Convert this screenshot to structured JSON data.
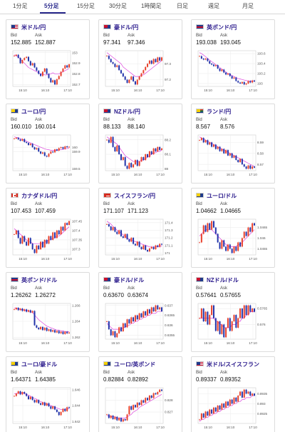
{
  "tabs": [
    "1分足",
    "5分足",
    "15分足",
    "30分足",
    "1時間足",
    "日足",
    "週足",
    "月足"
  ],
  "active_tab": 1,
  "bid_label": "Bid",
  "ask_label": "Ask",
  "colors": {
    "up": "#e8412c",
    "down": "#2233aa",
    "ma": "#dd44dd",
    "accent": "#2a2a8c"
  },
  "pairs": [
    {
      "name": "米ドル/円",
      "bid": "152.885",
      "ask": "152.887",
      "flag": "us",
      "ticks": [
        "153",
        "152.9",
        "152.8",
        "152.7"
      ],
      "xticks": [
        "15:10",
        "16:10",
        "17:10"
      ],
      "prices": [
        152.97,
        152.98,
        152.95,
        152.9,
        152.93,
        152.95,
        152.96,
        152.92,
        152.88,
        152.9,
        152.86,
        152.83,
        152.8,
        152.78,
        152.82,
        152.85,
        152.8,
        152.76,
        152.72,
        152.74,
        152.7,
        152.75,
        152.78,
        152.82,
        152.85,
        152.88,
        152.86,
        152.89
      ],
      "ma": [
        152.98,
        152.97,
        152.96,
        152.94,
        152.92,
        152.9,
        152.88,
        152.86,
        152.85,
        152.84,
        152.83,
        152.82,
        152.81,
        152.8,
        152.8,
        152.79,
        152.79,
        152.8,
        152.8,
        152.81,
        152.8,
        152.8,
        152.8,
        152.81,
        152.82,
        152.83,
        152.84,
        152.85
      ]
    },
    {
      "name": "豪ドル/円",
      "bid": "97.341",
      "ask": "97.346",
      "flag": "au",
      "ticks": [
        "97.3",
        "97.2"
      ],
      "xticks": [
        "15:10",
        "16:10",
        "17:10"
      ],
      "prices": [
        97.35,
        97.33,
        97.31,
        97.3,
        97.28,
        97.29,
        97.26,
        97.24,
        97.22,
        97.2,
        97.18,
        97.2,
        97.22,
        97.19,
        97.17,
        97.2,
        97.22,
        97.24,
        97.26,
        97.28,
        97.3,
        97.32,
        97.3,
        97.33,
        97.31,
        97.34,
        97.32,
        97.34
      ],
      "ma": [
        97.37,
        97.36,
        97.35,
        97.34,
        97.33,
        97.32,
        97.31,
        97.3,
        97.28,
        97.27,
        97.26,
        97.25,
        97.24,
        97.23,
        97.22,
        97.22,
        97.22,
        97.23,
        97.23,
        97.24,
        97.25,
        97.26,
        97.27,
        97.28,
        97.29,
        97.3,
        97.31,
        97.32
      ]
    },
    {
      "name": "英ポンド/円",
      "bid": "193.038",
      "ask": "193.045",
      "flag": "gb",
      "ticks": [
        "193.6",
        "193.4",
        "193.2",
        "193"
      ],
      "xticks": [
        "15:10",
        "16:10",
        "17:10"
      ],
      "prices": [
        193.55,
        193.5,
        193.48,
        193.5,
        193.45,
        193.4,
        193.38,
        193.35,
        193.37,
        193.3,
        193.25,
        193.28,
        193.22,
        193.18,
        193.2,
        193.15,
        193.1,
        193.12,
        193.05,
        193.02,
        193.0,
        193.03,
        192.98,
        193.0,
        193.05,
        193.02,
        193.06,
        193.04
      ],
      "ma": [
        193.62,
        193.6,
        193.57,
        193.54,
        193.5,
        193.47,
        193.44,
        193.41,
        193.38,
        193.35,
        193.32,
        193.29,
        193.26,
        193.23,
        193.2,
        193.18,
        193.16,
        193.14,
        193.12,
        193.1,
        193.09,
        193.08,
        193.07,
        193.06,
        193.05,
        193.05,
        193.05,
        193.05
      ]
    },
    {
      "name": "ユーロ/円",
      "bid": "160.010",
      "ask": "160.014",
      "flag": "eu",
      "ticks": [
        "160",
        "159.9",
        "159.5"
      ],
      "xticks": [
        "15:10",
        "16:10",
        "17:10"
      ],
      "prices": [
        160.2,
        160.22,
        160.18,
        160.15,
        160.19,
        160.12,
        160.1,
        160.05,
        160.08,
        160.0,
        159.95,
        159.98,
        159.9,
        159.85,
        159.88,
        159.8,
        159.78,
        159.85,
        159.9,
        159.88,
        159.95,
        159.92,
        159.98,
        160.0,
        159.96,
        160.02,
        160.0,
        160.01
      ],
      "ma": [
        160.24,
        160.23,
        160.22,
        160.2,
        160.18,
        160.16,
        160.14,
        160.12,
        160.1,
        160.08,
        160.06,
        160.04,
        160.02,
        160.0,
        159.98,
        159.96,
        159.95,
        159.94,
        159.93,
        159.93,
        159.93,
        159.93,
        159.94,
        159.94,
        159.95,
        159.96,
        159.97,
        159.98
      ]
    },
    {
      "name": "NZドル/円",
      "bid": "88.133",
      "ask": "88.140",
      "flag": "nz",
      "ticks": [
        "88.2",
        "88.1",
        "88"
      ],
      "xticks": [
        "15:10",
        "16:10",
        "17:10"
      ],
      "prices": [
        88.2,
        88.18,
        88.22,
        88.15,
        88.12,
        88.16,
        88.1,
        88.06,
        88.08,
        88.02,
        88.0,
        88.04,
        88.01,
        88.03,
        88.06,
        88.02,
        88.05,
        88.08,
        88.06,
        88.1,
        88.08,
        88.12,
        88.1,
        88.14,
        88.12,
        88.15,
        88.13,
        88.14
      ],
      "ma": [
        88.22,
        88.21,
        88.2,
        88.19,
        88.18,
        88.17,
        88.15,
        88.13,
        88.11,
        88.09,
        88.08,
        88.07,
        88.06,
        88.05,
        88.05,
        88.05,
        88.05,
        88.06,
        88.06,
        88.07,
        88.08,
        88.09,
        88.1,
        88.11,
        88.11,
        88.12,
        88.12,
        88.13
      ]
    },
    {
      "name": "ランド/円",
      "bid": "8.567",
      "ask": "8.576",
      "flag": "za",
      "ticks": [
        "8.59",
        "8.58",
        "8.57"
      ],
      "xticks": [
        "15:10",
        "16:10",
        "17:10"
      ],
      "prices": [
        8.592,
        8.594,
        8.59,
        8.592,
        8.588,
        8.59,
        8.586,
        8.588,
        8.584,
        8.586,
        8.582,
        8.584,
        8.58,
        8.583,
        8.578,
        8.58,
        8.576,
        8.578,
        8.574,
        8.572,
        8.575,
        8.57,
        8.568,
        8.566,
        8.569,
        8.566,
        8.568,
        8.567
      ],
      "ma": [
        8.595,
        8.594,
        8.593,
        8.592,
        8.591,
        8.59,
        8.589,
        8.588,
        8.587,
        8.586,
        8.585,
        8.584,
        8.583,
        8.582,
        8.581,
        8.58,
        8.579,
        8.578,
        8.577,
        8.576,
        8.575,
        8.574,
        8.573,
        8.572,
        8.571,
        8.57,
        8.569,
        8.568
      ]
    },
    {
      "name": "カナダドル/円",
      "bid": "107.453",
      "ask": "107.459",
      "flag": "ca",
      "ticks": [
        "107.45",
        "107.4",
        "107.35",
        "107.3"
      ],
      "xticks": [
        "15:10",
        "16:10",
        "17:10"
      ],
      "prices": [
        107.38,
        107.4,
        107.36,
        107.33,
        107.37,
        107.34,
        107.32,
        107.36,
        107.33,
        107.3,
        107.28,
        107.32,
        107.3,
        107.34,
        107.31,
        107.35,
        107.33,
        107.37,
        107.35,
        107.39,
        107.36,
        107.4,
        107.38,
        107.42,
        107.4,
        107.44,
        107.43,
        107.45
      ],
      "ma": [
        107.41,
        107.4,
        107.39,
        107.38,
        107.37,
        107.36,
        107.35,
        107.34,
        107.34,
        107.33,
        107.33,
        107.33,
        107.33,
        107.33,
        107.33,
        107.34,
        107.34,
        107.35,
        107.35,
        107.36,
        107.36,
        107.37,
        107.37,
        107.38,
        107.39,
        107.4,
        107.41,
        107.42
      ]
    },
    {
      "name": "スイスフラン/円",
      "bid": "171.107",
      "ask": "171.123",
      "flag": "ch",
      "ticks": [
        "171.4",
        "171.3",
        "171.2",
        "171.1",
        "171"
      ],
      "xticks": [
        "15:10",
        "16:10",
        "17:10"
      ],
      "prices": [
        171.38,
        171.35,
        171.3,
        171.34,
        171.28,
        171.25,
        171.3,
        171.22,
        171.2,
        171.25,
        171.18,
        171.15,
        171.2,
        171.12,
        171.1,
        171.15,
        171.08,
        171.05,
        171.1,
        171.04,
        171.02,
        171.06,
        171.08,
        171.05,
        171.1,
        171.08,
        171.12,
        171.11
      ],
      "ma": [
        171.42,
        171.4,
        171.38,
        171.35,
        171.33,
        171.3,
        171.28,
        171.26,
        171.24,
        171.22,
        171.2,
        171.18,
        171.17,
        171.16,
        171.15,
        171.14,
        171.13,
        171.12,
        171.11,
        171.1,
        171.09,
        171.08,
        171.08,
        171.08,
        171.08,
        171.08,
        171.09,
        171.09
      ]
    },
    {
      "name": "ユーロ/ドル",
      "bid": "1.04662",
      "ask": "1.04665",
      "flag": "eu",
      "ticks": [
        "1.0465",
        "1.046",
        "1.0455"
      ],
      "xticks": [
        "15:10",
        "16:10",
        "17:10"
      ],
      "prices": [
        1.0458,
        1.0462,
        1.0466,
        1.0463,
        1.0467,
        1.0464,
        1.0468,
        1.0465,
        1.0462,
        1.0458,
        1.0455,
        1.0459,
        1.0456,
        1.0454,
        1.0457,
        1.0455,
        1.0453,
        1.0456,
        1.0454,
        1.0458,
        1.0456,
        1.046,
        1.0463,
        1.0461,
        1.0465,
        1.0463,
        1.0467,
        1.0466
      ],
      "ma": [
        1.0461,
        1.0462,
        1.0463,
        1.0464,
        1.0464,
        1.0464,
        1.0464,
        1.0463,
        1.0462,
        1.0461,
        1.046,
        1.0459,
        1.0458,
        1.0457,
        1.0456,
        1.0456,
        1.0456,
        1.0456,
        1.0456,
        1.0457,
        1.0457,
        1.0458,
        1.0459,
        1.046,
        1.0461,
        1.0462,
        1.0463,
        1.0464
      ]
    },
    {
      "name": "英ポンド/ドル",
      "bid": "1.26262",
      "ask": "1.26272",
      "flag": "gb",
      "ticks": [
        "1.266",
        "1.264",
        "1.262"
      ],
      "xticks": [
        "15:10",
        "16:10",
        "17:10"
      ],
      "prices": [
        1.2655,
        1.2657,
        1.2654,
        1.2656,
        1.2653,
        1.2655,
        1.2652,
        1.2654,
        1.2651,
        1.2653,
        1.2635,
        1.2632,
        1.263,
        1.2633,
        1.2629,
        1.2632,
        1.2628,
        1.263,
        1.2627,
        1.2629,
        1.2626,
        1.2628,
        1.2625,
        1.2627,
        1.2624,
        1.2627,
        1.2625,
        1.2626
      ],
      "ma": [
        1.2657,
        1.2656,
        1.2656,
        1.2655,
        1.2655,
        1.2654,
        1.2654,
        1.2653,
        1.2652,
        1.2651,
        1.2648,
        1.2645,
        1.2642,
        1.264,
        1.2638,
        1.2636,
        1.2634,
        1.2633,
        1.2632,
        1.2631,
        1.263,
        1.2629,
        1.2629,
        1.2628,
        1.2628,
        1.2627,
        1.2627,
        1.2627
      ]
    },
    {
      "name": "豪ドル/ドル",
      "bid": "0.63670",
      "ask": "0.63674",
      "flag": "au",
      "ticks": [
        "0.637",
        "0.6365",
        "0.636",
        "0.6355"
      ],
      "xticks": [
        "15:10",
        "16:10",
        "17:10"
      ],
      "prices": [
        0.6362,
        0.6358,
        0.6355,
        0.6357,
        0.6354,
        0.6356,
        0.6359,
        0.6357,
        0.6361,
        0.6359,
        0.6363,
        0.6361,
        0.6364,
        0.6362,
        0.6365,
        0.6363,
        0.6366,
        0.6364,
        0.6367,
        0.6365,
        0.6368,
        0.6366,
        0.6369,
        0.6367,
        0.637,
        0.6368,
        0.6369,
        0.6367
      ],
      "ma": [
        0.6361,
        0.636,
        0.6359,
        0.6358,
        0.6358,
        0.6358,
        0.6358,
        0.6358,
        0.6359,
        0.6359,
        0.636,
        0.636,
        0.6361,
        0.6361,
        0.6362,
        0.6362,
        0.6363,
        0.6363,
        0.6364,
        0.6364,
        0.6365,
        0.6365,
        0.6366,
        0.6366,
        0.6366,
        0.6367,
        0.6367,
        0.6367
      ]
    },
    {
      "name": "NZドル/ドル",
      "bid": "0.57641",
      "ask": "0.57655",
      "flag": "nz",
      "ticks": [
        "0.5765",
        "0.576"
      ],
      "xticks": [
        "15:10",
        "16:10",
        "17:10"
      ],
      "prices": [
        0.5762,
        0.5765,
        0.5761,
        0.5764,
        0.576,
        0.5763,
        0.5766,
        0.5762,
        0.5758,
        0.5761,
        0.5757,
        0.576,
        0.5756,
        0.5759,
        0.5762,
        0.5758,
        0.5761,
        0.5763,
        0.5759,
        0.5762,
        0.5765,
        0.5762,
        0.5766,
        0.5763,
        0.5766,
        0.5764,
        0.5765,
        0.5764
      ],
      "ma": [
        0.5762,
        0.5762,
        0.5762,
        0.5762,
        0.5762,
        0.5762,
        0.5762,
        0.5762,
        0.5761,
        0.5761,
        0.576,
        0.576,
        0.5759,
        0.5759,
        0.5759,
        0.5759,
        0.576,
        0.576,
        0.576,
        0.5761,
        0.5761,
        0.5762,
        0.5762,
        0.5763,
        0.5763,
        0.5764,
        0.5764,
        0.5764
      ]
    },
    {
      "name": "ユーロ/豪ドル",
      "bid": "1.64371",
      "ask": "1.64385",
      "flag": "eu",
      "ticks": [
        "1.646",
        "1.644",
        "1.642"
      ],
      "xticks": [
        "15:10",
        "16:10",
        "17:10"
      ],
      "prices": [
        1.6452,
        1.6455,
        1.6458,
        1.6454,
        1.6457,
        1.6455,
        1.6452,
        1.6448,
        1.6451,
        1.6447,
        1.6444,
        1.6447,
        1.6443,
        1.6441,
        1.6444,
        1.644,
        1.6443,
        1.6439,
        1.6436,
        1.6439,
        1.6435,
        1.6432,
        1.6428,
        1.6432,
        1.6436,
        1.6433,
        1.6438,
        1.6437
      ],
      "ma": [
        1.6455,
        1.6455,
        1.6456,
        1.6456,
        1.6456,
        1.6455,
        1.6454,
        1.6453,
        1.6452,
        1.645,
        1.6449,
        1.6448,
        1.6446,
        1.6445,
        1.6444,
        1.6443,
        1.6442,
        1.6441,
        1.644,
        1.6439,
        1.6438,
        1.6437,
        1.6436,
        1.6435,
        1.6435,
        1.6435,
        1.6436,
        1.6436
      ]
    },
    {
      "name": "ユーロ/英ポンド",
      "bid": "0.82884",
      "ask": "0.82892",
      "flag": "eu",
      "ticks": [
        "0.828",
        "0.827"
      ],
      "xticks": [
        "15:10",
        "16:10",
        "17:10"
      ],
      "prices": [
        0.8268,
        0.8265,
        0.8267,
        0.8264,
        0.8266,
        0.8263,
        0.8265,
        0.8262,
        0.8264,
        0.8263,
        0.8268,
        0.8275,
        0.8272,
        0.8276,
        0.8274,
        0.8278,
        0.8276,
        0.828,
        0.8278,
        0.8282,
        0.828,
        0.8284,
        0.8282,
        0.8286,
        0.8285,
        0.8287,
        0.8289,
        0.8288
      ],
      "ma": [
        0.8267,
        0.8267,
        0.8266,
        0.8266,
        0.8266,
        0.8265,
        0.8265,
        0.8265,
        0.8265,
        0.8265,
        0.8266,
        0.8267,
        0.8268,
        0.827,
        0.8271,
        0.8272,
        0.8274,
        0.8275,
        0.8276,
        0.8277,
        0.8278,
        0.8279,
        0.828,
        0.8281,
        0.8282,
        0.8283,
        0.8284,
        0.8285
      ]
    },
    {
      "name": "米ドル/スイスフラン",
      "bid": "0.89337",
      "ask": "0.89352",
      "flag": "us",
      "ticks": [
        "0.8935",
        "0.893",
        "0.8925"
      ],
      "xticks": [
        "15:10",
        "16:10",
        "17:10"
      ],
      "prices": [
        0.8922,
        0.8925,
        0.8923,
        0.8926,
        0.8924,
        0.8927,
        0.8925,
        0.8928,
        0.8926,
        0.8929,
        0.8927,
        0.893,
        0.8928,
        0.8931,
        0.8929,
        0.8932,
        0.893,
        0.8933,
        0.8931,
        0.8934,
        0.8936,
        0.8933,
        0.8937,
        0.8935,
        0.8936,
        0.8934,
        0.8935,
        0.8934
      ],
      "ma": [
        0.8921,
        0.8922,
        0.8922,
        0.8923,
        0.8923,
        0.8924,
        0.8924,
        0.8925,
        0.8925,
        0.8926,
        0.8926,
        0.8927,
        0.8927,
        0.8928,
        0.8928,
        0.8929,
        0.8929,
        0.893,
        0.893,
        0.8931,
        0.8931,
        0.8932,
        0.8932,
        0.8933,
        0.8933,
        0.8933,
        0.8934,
        0.8934
      ]
    }
  ]
}
